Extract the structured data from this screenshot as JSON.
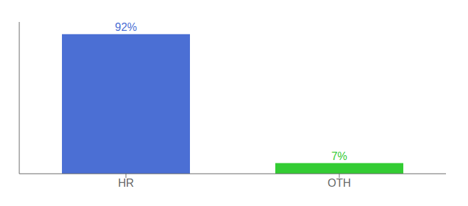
{
  "chart_data": {
    "type": "bar",
    "categories": [
      "HR",
      "OTH"
    ],
    "values": [
      92,
      7
    ],
    "value_labels": [
      "92%",
      "7%"
    ],
    "colors": [
      "#4B6FD4",
      "#33cc33"
    ],
    "ylim": [
      0,
      100
    ],
    "data_labels": true,
    "tick_labels": "x",
    "grid": false
  }
}
